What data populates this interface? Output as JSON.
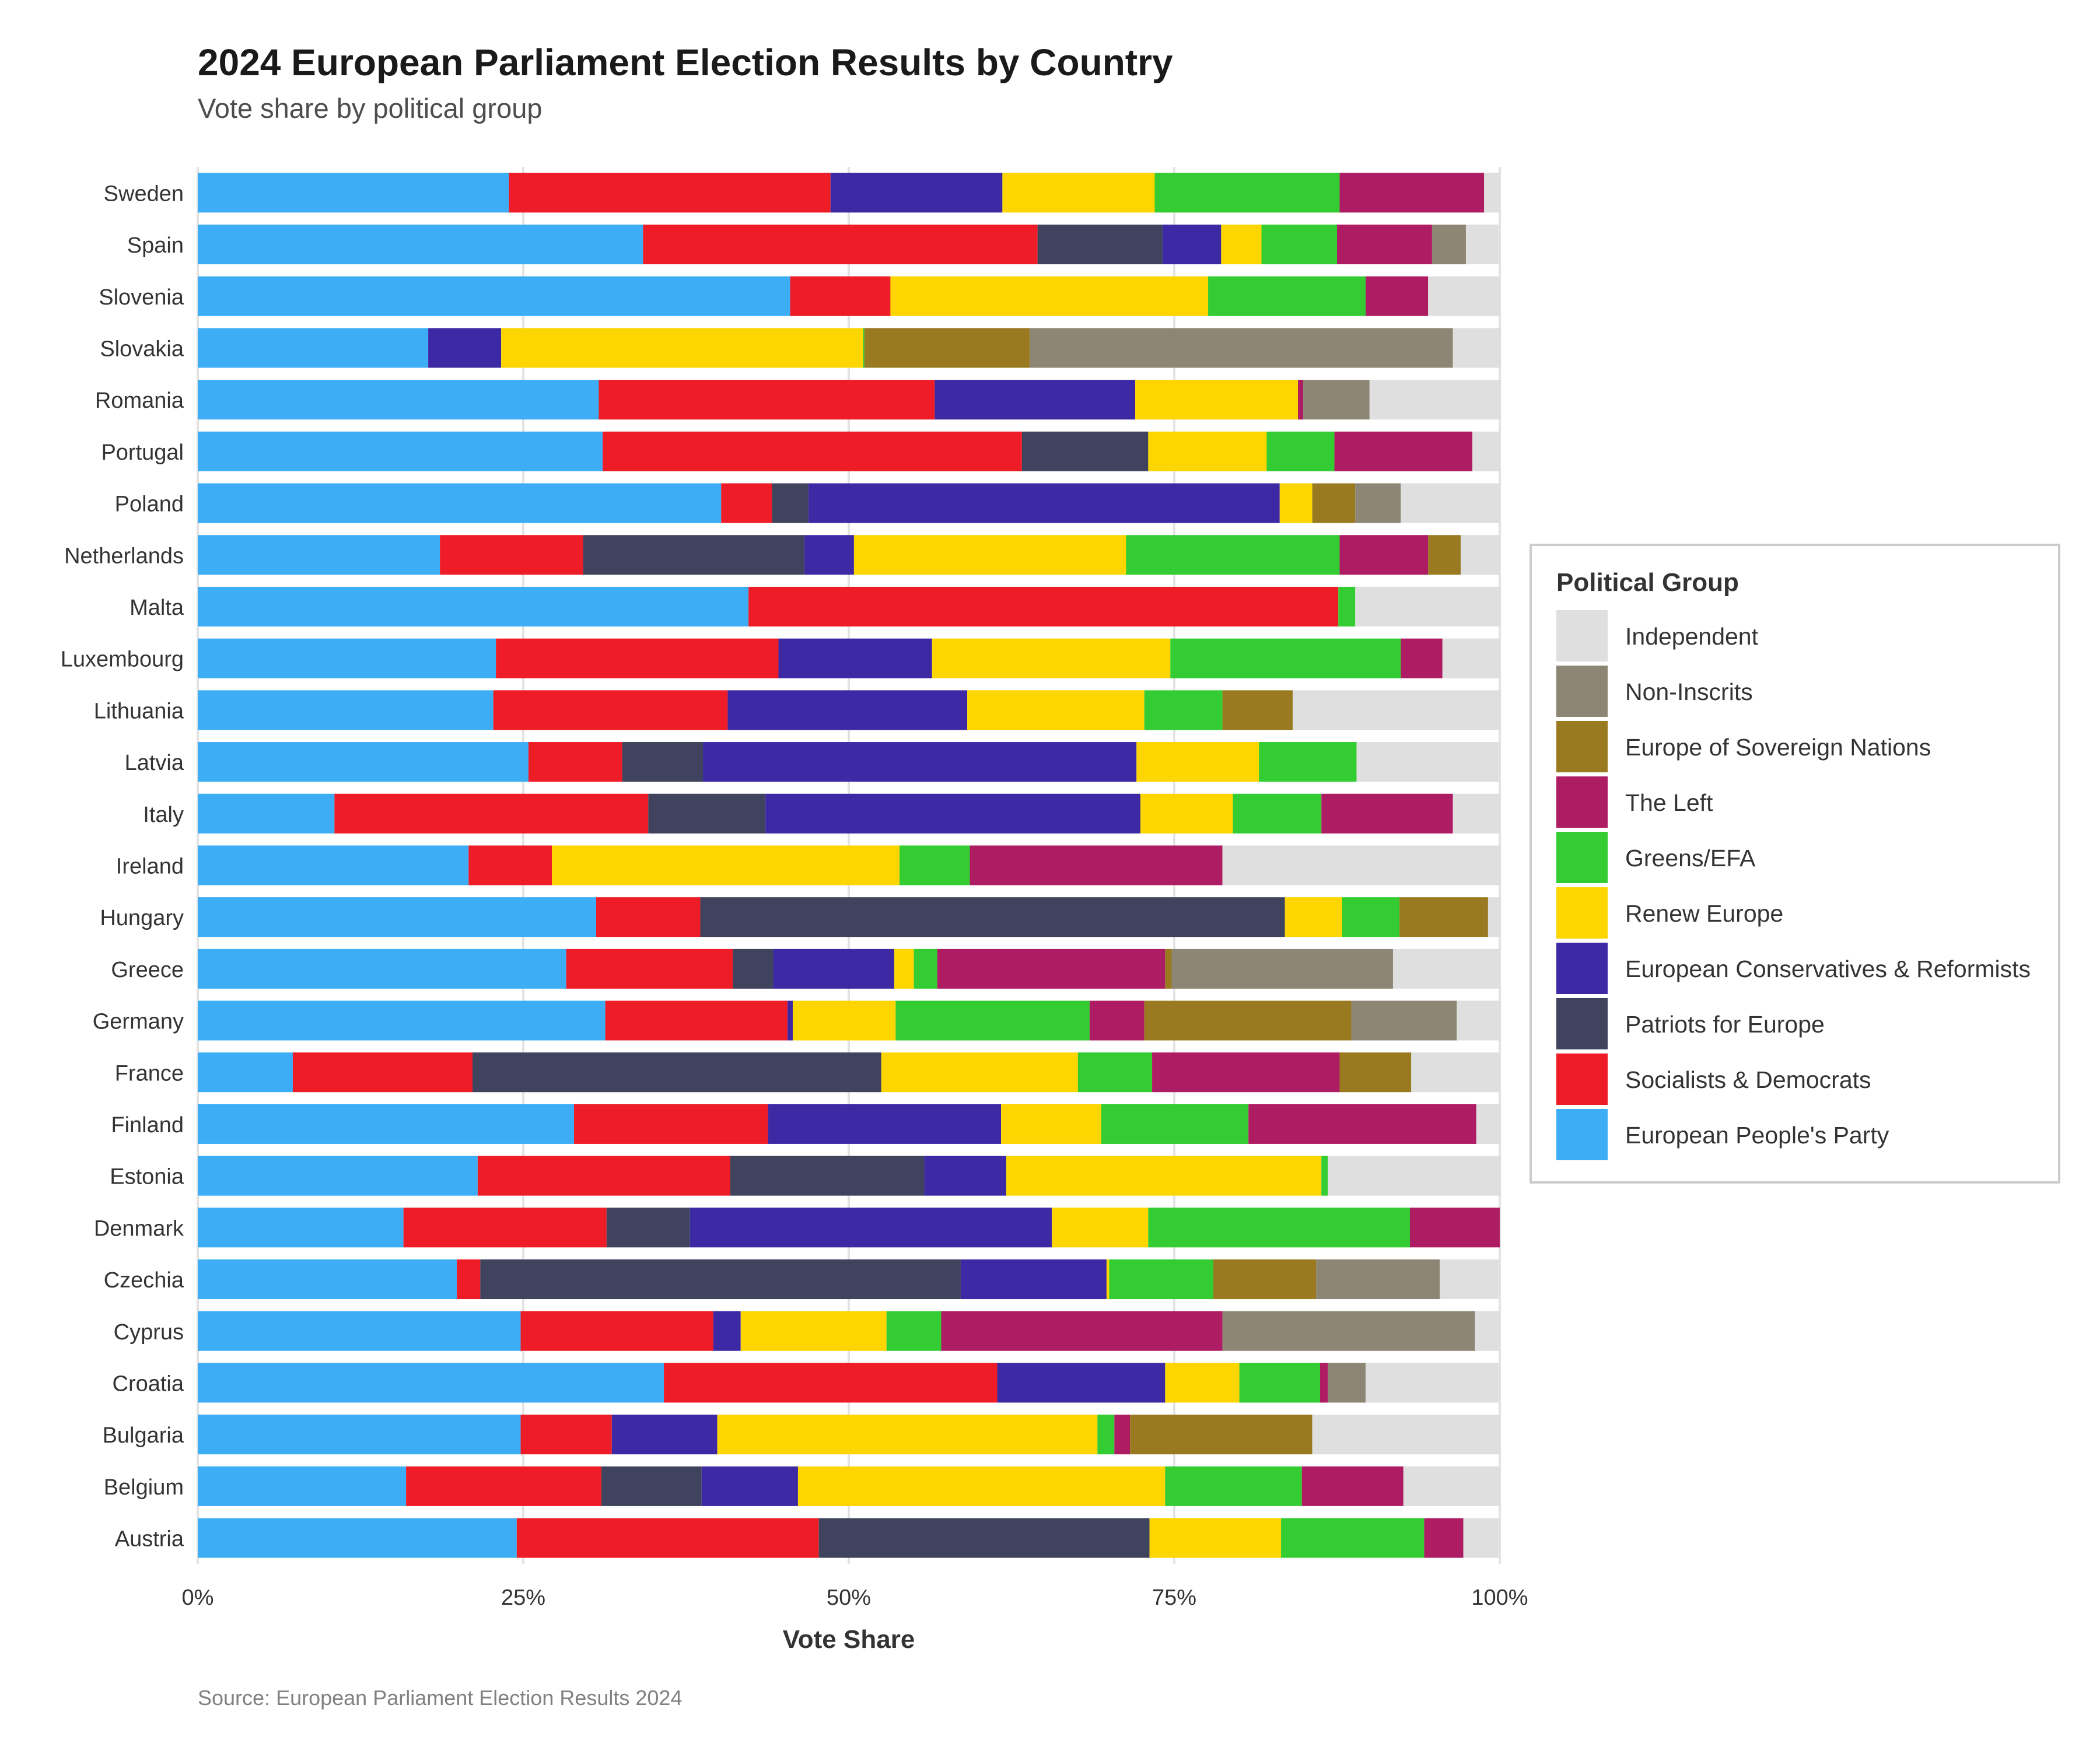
{
  "title": "2024 European Parliament Election Results by Country",
  "subtitle": "Vote share by political group",
  "source": "Source: European Parliament Election Results 2024",
  "legend": {
    "title": "Political Group",
    "items": [
      {
        "label": "Independent",
        "color": "#DFDFDF"
      },
      {
        "label": "Non-Inscrits",
        "color": "#8E8674"
      },
      {
        "label": "Europe of Sovereign Nations",
        "color": "#997A21"
      },
      {
        "label": "The Left",
        "color": "#AE1C64"
      },
      {
        "label": "Greens/EFA",
        "color": "#33CC33"
      },
      {
        "label": "Renew Europe",
        "color": "#FDD500"
      },
      {
        "label": "European Conservatives & Reformists",
        "color": "#3E29A5"
      },
      {
        "label": "Patriots for Europe",
        "color": "#3F435D"
      },
      {
        "label": "Socialists & Democrats",
        "color": "#EE1C26"
      },
      {
        "label": "European People's Party",
        "color": "#3DAEF5"
      }
    ]
  },
  "chart_data": {
    "type": "bar",
    "orientation": "horizontal",
    "stacked": true,
    "title": "2024 European Parliament Election Results by Country",
    "subtitle": "Vote share by political group",
    "xlabel": "Vote Share",
    "ylabel": "",
    "xlim": [
      0,
      100
    ],
    "xticks": [
      "0%",
      "25%",
      "50%",
      "75%",
      "100%"
    ],
    "grid": true,
    "legend_position": "right",
    "categories": [
      "Sweden",
      "Spain",
      "Slovenia",
      "Slovakia",
      "Romania",
      "Portugal",
      "Poland",
      "Netherlands",
      "Malta",
      "Luxembourg",
      "Lithuania",
      "Latvia",
      "Italy",
      "Ireland",
      "Hungary",
      "Greece",
      "Germany",
      "France",
      "Finland",
      "Estonia",
      "Denmark",
      "Czechia",
      "Cyprus",
      "Croatia",
      "Bulgaria",
      "Belgium",
      "Austria"
    ],
    "series": [
      {
        "name": "European People's Party",
        "color": "#3DAEF5",
        "values": [
          23.9,
          34.2,
          45.5,
          17.7,
          30.8,
          31.1,
          40.2,
          18.6,
          42.3,
          22.9,
          22.7,
          25.4,
          10.5,
          20.8,
          30.6,
          28.3,
          31.3,
          7.3,
          28.9,
          21.5,
          15.8,
          19.9,
          24.8,
          35.8,
          24.8,
          16.0,
          24.5
        ]
      },
      {
        "name": "Socialists & Democrats",
        "color": "#EE1C26",
        "values": [
          24.7,
          30.3,
          7.7,
          0,
          25.8,
          32.2,
          3.9,
          11.0,
          45.3,
          21.7,
          18.0,
          7.2,
          24.1,
          6.4,
          8.0,
          12.8,
          14.0,
          13.8,
          14.9,
          19.4,
          15.6,
          1.8,
          14.8,
          25.6,
          7.0,
          15.0,
          23.2
        ]
      },
      {
        "name": "Patriots for Europe",
        "color": "#3F435D",
        "values": [
          0,
          9.6,
          0,
          0,
          0,
          9.7,
          2.8,
          17.0,
          0,
          0,
          0,
          6.2,
          9.0,
          0,
          44.9,
          3.1,
          0,
          31.4,
          0,
          14.9,
          6.4,
          36.9,
          0,
          0,
          0,
          7.7,
          25.4
        ]
      },
      {
        "name": "European Conservatives & Reformists",
        "color": "#3E29A5",
        "values": [
          13.2,
          4.5,
          0,
          5.6,
          15.4,
          0,
          36.2,
          3.8,
          0,
          11.8,
          18.4,
          33.3,
          28.8,
          0,
          0,
          9.3,
          0.4,
          0,
          17.9,
          6.3,
          27.8,
          11.2,
          2.1,
          12.9,
          8.1,
          7.4,
          0
        ]
      },
      {
        "name": "Renew Europe",
        "color": "#FDD500",
        "values": [
          11.7,
          3.1,
          24.4,
          27.8,
          12.5,
          9.1,
          2.5,
          20.9,
          0,
          18.3,
          13.6,
          9.4,
          7.1,
          26.7,
          4.4,
          1.5,
          7.9,
          15.1,
          7.7,
          24.2,
          7.4,
          0.2,
          11.2,
          5.7,
          29.2,
          28.2,
          10.1
        ]
      },
      {
        "name": "Greens/EFA",
        "color": "#33CC33",
        "values": [
          14.2,
          5.8,
          12.1,
          0.1,
          0,
          5.2,
          0,
          16.4,
          1.3,
          17.7,
          6.0,
          7.5,
          6.8,
          5.4,
          4.4,
          1.8,
          14.9,
          5.7,
          11.3,
          0.5,
          20.1,
          8.0,
          4.2,
          6.2,
          1.3,
          10.5,
          11.0
        ]
      },
      {
        "name": "The Left",
        "color": "#AE1C64",
        "values": [
          11.1,
          7.3,
          4.8,
          0,
          0.4,
          10.6,
          0,
          6.8,
          0,
          3.2,
          0,
          0,
          10.1,
          19.4,
          0,
          17.5,
          4.2,
          14.4,
          17.5,
          0,
          6.9,
          0,
          21.6,
          0.6,
          1.2,
          7.8,
          3.0
        ]
      },
      {
        "name": "Europe of Sovereign Nations",
        "color": "#997A21",
        "values": [
          0,
          0,
          0,
          12.7,
          0,
          0,
          3.3,
          2.5,
          0,
          0,
          5.4,
          0,
          0,
          0,
          6.8,
          0.5,
          15.9,
          5.5,
          0,
          0,
          0,
          7.9,
          0,
          0,
          14.0,
          0,
          0
        ]
      },
      {
        "name": "Non-Inscrits",
        "color": "#8E8674",
        "values": [
          0,
          2.6,
          0,
          32.5,
          5.1,
          0,
          3.5,
          0,
          0,
          0,
          0,
          0,
          0,
          0,
          0,
          17.0,
          8.1,
          0,
          0,
          0,
          0,
          9.5,
          19.4,
          2.9,
          0,
          0,
          0
        ]
      },
      {
        "name": "Independent",
        "color": "#DFDFDF",
        "values": [
          1.2,
          2.5,
          5.5,
          3.7,
          10.1,
          2.1,
          7.6,
          3.0,
          11.2,
          4.4,
          16.0,
          10.9,
          3.6,
          21.4,
          1.0,
          8.2,
          3.4,
          6.8,
          1.9,
          13.3,
          0,
          4.5,
          1.9,
          10.2,
          14.4,
          7.4,
          2.7
        ]
      }
    ]
  }
}
